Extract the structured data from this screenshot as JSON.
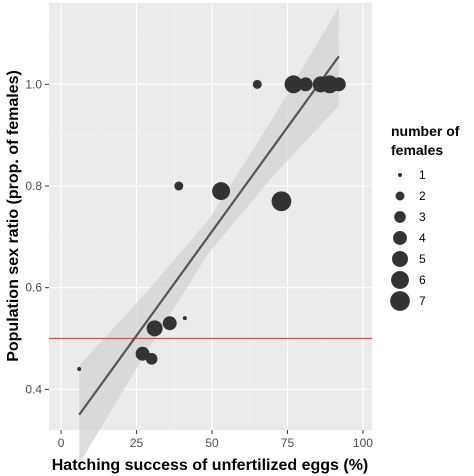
{
  "chart_data": {
    "type": "scatter",
    "xlabel": "Hatching success of unfertilized eggs (%)",
    "ylabel": "Population sex ratio (prop. of females)",
    "xlim": [
      -4,
      103
    ],
    "ylim": [
      0.32,
      1.16
    ],
    "x_ticks": [
      0,
      25,
      50,
      75,
      100
    ],
    "x_tick_labels": [
      "0",
      "25",
      "50",
      "75",
      "100"
    ],
    "y_ticks": [
      0.4,
      0.6,
      0.8,
      1.0
    ],
    "y_tick_labels": [
      "0.4",
      "0.6",
      "0.8",
      "1.0"
    ],
    "grid": true,
    "reference_line": {
      "y": 0.5,
      "color": "#e8474a"
    },
    "regression": {
      "x": [
        6,
        92
      ],
      "y": [
        0.35,
        1.055
      ],
      "ci_band": [
        {
          "x": 6,
          "lo": 0.253,
          "hi": 0.447
        },
        {
          "x": 28,
          "lo": 0.471,
          "hi": 0.589
        },
        {
          "x": 49,
          "lo": 0.669,
          "hi": 0.735
        },
        {
          "x": 70,
          "lo": 0.818,
          "hi": 0.932
        },
        {
          "x": 92,
          "lo": 0.958,
          "hi": 1.152
        }
      ],
      "color": "#555555",
      "band_color": "#d3d3d3"
    },
    "points": [
      {
        "x": 6,
        "y": 0.44,
        "size": 1
      },
      {
        "x": 27,
        "y": 0.47,
        "size": 4
      },
      {
        "x": 30,
        "y": 0.46,
        "size": 3
      },
      {
        "x": 31,
        "y": 0.52,
        "size": 5
      },
      {
        "x": 36,
        "y": 0.53,
        "size": 4
      },
      {
        "x": 39,
        "y": 0.8,
        "size": 2
      },
      {
        "x": 41,
        "y": 0.54,
        "size": 1
      },
      {
        "x": 53,
        "y": 0.79,
        "size": 6
      },
      {
        "x": 65,
        "y": 1.0,
        "size": 2
      },
      {
        "x": 73,
        "y": 0.77,
        "size": 7
      },
      {
        "x": 77,
        "y": 1.0,
        "size": 6
      },
      {
        "x": 81,
        "y": 1.0,
        "size": 4
      },
      {
        "x": 86,
        "y": 1.0,
        "size": 5
      },
      {
        "x": 89,
        "y": 1.0,
        "size": 6
      },
      {
        "x": 92,
        "y": 1.0,
        "size": 4
      }
    ],
    "point_color": "#333333",
    "legend": {
      "title_line1": "number of",
      "title_line2": "females",
      "placement": "right",
      "values": [
        1,
        2,
        3,
        4,
        5,
        6,
        7
      ],
      "labels": [
        "1",
        "2",
        "3",
        "4",
        "5",
        "6",
        "7"
      ]
    },
    "colors": {
      "panel_background": "#ebebeb",
      "grid_major": "#ffffff",
      "grid_minor": "#f5f5f5"
    }
  }
}
